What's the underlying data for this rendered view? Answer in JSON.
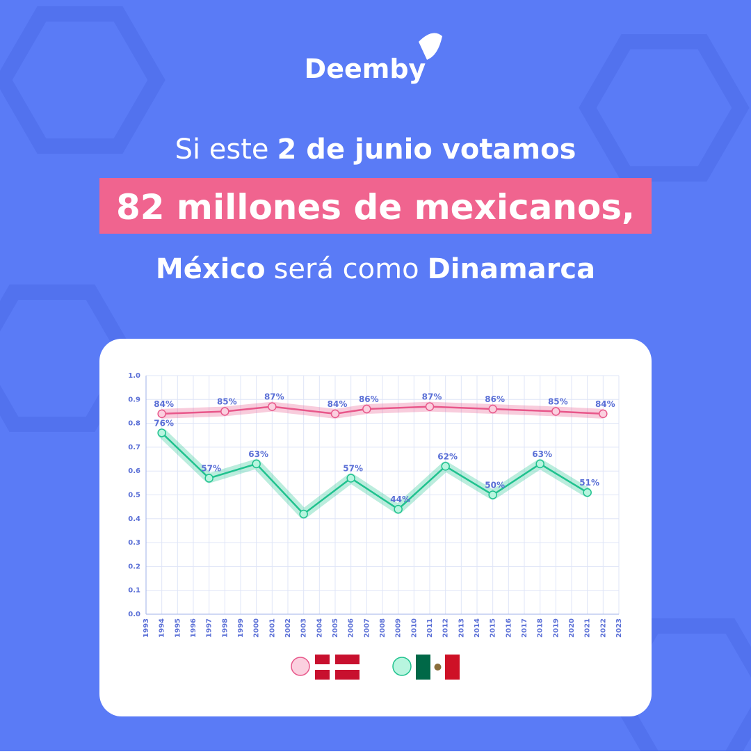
{
  "header": {
    "logo": "Deemby",
    "line1a": "Si este",
    "line1b": "2 de junio votamos",
    "line2": "82 millones de mexicanos,",
    "line3a": "México",
    "line3b": "será como",
    "line3c": "Dinamarca"
  },
  "chart_data": {
    "type": "line",
    "xlim": [
      1993,
      2023
    ],
    "xticks": [
      1993,
      1994,
      1995,
      1996,
      1997,
      1998,
      1999,
      2000,
      2001,
      2002,
      2003,
      2004,
      2005,
      2006,
      2007,
      2008,
      2009,
      2010,
      2011,
      2012,
      2013,
      2014,
      2015,
      2016,
      2017,
      2018,
      2019,
      2020,
      2021,
      2022,
      2023
    ],
    "ylim": [
      0,
      1
    ],
    "yticks": [
      {
        "value": 0,
        "label": "0.0"
      },
      0.1,
      0.2,
      0.3,
      0.4,
      0.5,
      0.6,
      0.7,
      0.8,
      0.9,
      {
        "value": 1,
        "label": "1.0"
      }
    ],
    "grid": true,
    "series": [
      {
        "color": "#e8578a",
        "marker_color": "#fbd0df",
        "x": [
          1994,
          1998,
          2001,
          2005,
          2007,
          2011,
          2015,
          2019,
          2022
        ],
        "values": [
          0.84,
          0.85,
          0.87,
          0.84,
          0.86,
          0.87,
          0.86,
          0.85,
          0.84
        ],
        "value_labels": [
          "84%",
          "85%",
          "87%",
          "84%",
          "86%",
          "87%",
          "86%",
          "85%",
          "84%"
        ]
      },
      {
        "color": "#1fc28e",
        "marker_color": "#b8f5df",
        "x": [
          1994,
          1997,
          2000,
          2003,
          2006,
          2009,
          2012,
          2015,
          2018,
          2021
        ],
        "values": [
          0.76,
          0.57,
          0.63,
          0.42,
          0.57,
          0.44,
          0.62,
          0.5,
          0.63,
          0.51
        ],
        "value_labels": [
          "76%",
          "57%",
          "63%",
          null,
          "57%",
          "44%",
          "62%",
          "50%",
          "63%",
          "51%"
        ]
      }
    ]
  }
}
